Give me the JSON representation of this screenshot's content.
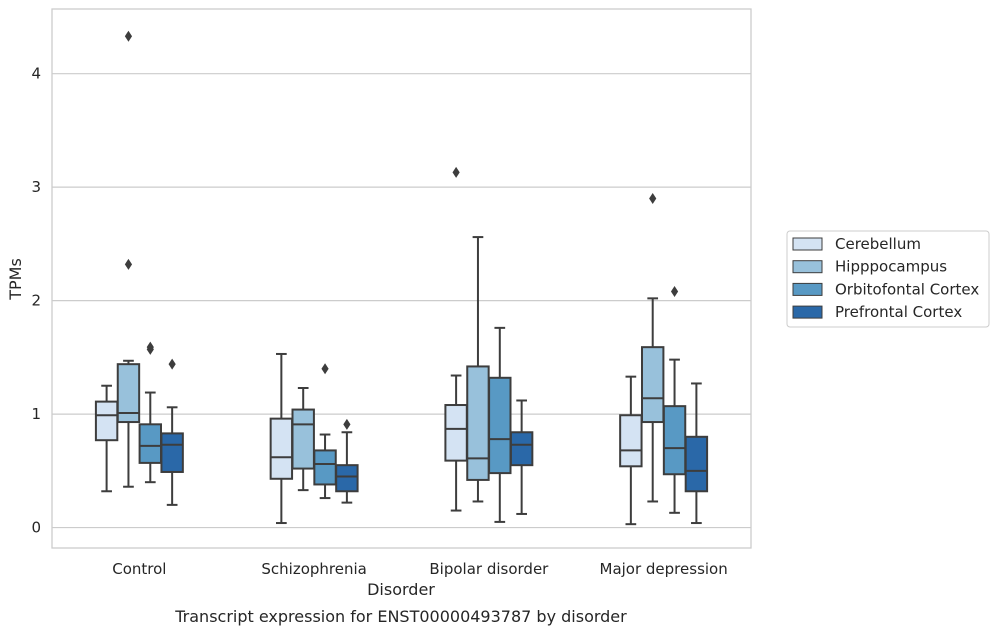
{
  "chart_data": {
    "type": "box",
    "xlabel": "Disorder",
    "ylabel": "TPMs",
    "caption": "Transcript expression for ENST00000493787 by disorder",
    "categories": [
      "Control",
      "Schizophrenia",
      "Bipolar disorder",
      "Major depression"
    ],
    "ylim": [
      -0.18,
      4.57
    ],
    "yticks": [
      0,
      1,
      2,
      3,
      4
    ],
    "grid": "horizontal",
    "legend_position": "right",
    "series": [
      {
        "name": "Cerebellum",
        "color": "#d4e3f3",
        "boxes": [
          {
            "whisker_low": 0.32,
            "q1": 0.77,
            "median": 0.99,
            "q3": 1.11,
            "whisker_high": 1.25,
            "outliers": []
          },
          {
            "whisker_low": 0.04,
            "q1": 0.43,
            "median": 0.62,
            "q3": 0.96,
            "whisker_high": 1.53,
            "outliers": []
          },
          {
            "whisker_low": 0.15,
            "q1": 0.59,
            "median": 0.87,
            "q3": 1.08,
            "whisker_high": 1.34,
            "outliers": [
              3.13
            ]
          },
          {
            "whisker_low": 0.03,
            "q1": 0.54,
            "median": 0.68,
            "q3": 0.99,
            "whisker_high": 1.33,
            "outliers": []
          }
        ]
      },
      {
        "name": "Hipppocampus",
        "color": "#98c1db",
        "boxes": [
          {
            "whisker_low": 0.36,
            "q1": 0.93,
            "median": 1.01,
            "q3": 1.44,
            "whisker_high": 1.47,
            "outliers": [
              2.32,
              4.33
            ]
          },
          {
            "whisker_low": 0.33,
            "q1": 0.52,
            "median": 0.91,
            "q3": 1.04,
            "whisker_high": 1.23,
            "outliers": []
          },
          {
            "whisker_low": 0.23,
            "q1": 0.42,
            "median": 0.61,
            "q3": 1.42,
            "whisker_high": 2.56,
            "outliers": []
          },
          {
            "whisker_low": 0.23,
            "q1": 0.93,
            "median": 1.14,
            "q3": 1.59,
            "whisker_high": 2.02,
            "outliers": [
              2.9
            ]
          }
        ]
      },
      {
        "name": "Orbitofontal Cortex",
        "color": "#5899c4",
        "boxes": [
          {
            "whisker_low": 0.4,
            "q1": 0.57,
            "median": 0.72,
            "q3": 0.91,
            "whisker_high": 1.19,
            "outliers": [
              1.57,
              1.59
            ]
          },
          {
            "whisker_low": 0.26,
            "q1": 0.38,
            "median": 0.56,
            "q3": 0.68,
            "whisker_high": 0.82,
            "outliers": [
              1.4
            ]
          },
          {
            "whisker_low": 0.05,
            "q1": 0.48,
            "median": 0.78,
            "q3": 1.32,
            "whisker_high": 1.76,
            "outliers": []
          },
          {
            "whisker_low": 0.13,
            "q1": 0.47,
            "median": 0.7,
            "q3": 1.07,
            "whisker_high": 1.48,
            "outliers": [
              2.08
            ]
          }
        ]
      },
      {
        "name": "Prefrontal Cortex",
        "color": "#2a68a8",
        "boxes": [
          {
            "whisker_low": 0.2,
            "q1": 0.49,
            "median": 0.73,
            "q3": 0.83,
            "whisker_high": 1.06,
            "outliers": [
              1.44
            ]
          },
          {
            "whisker_low": 0.22,
            "q1": 0.32,
            "median": 0.45,
            "q3": 0.55,
            "whisker_high": 0.84,
            "outliers": [
              0.91
            ]
          },
          {
            "whisker_low": 0.12,
            "q1": 0.55,
            "median": 0.73,
            "q3": 0.84,
            "whisker_high": 1.12,
            "outliers": []
          },
          {
            "whisker_low": 0.04,
            "q1": 0.32,
            "median": 0.5,
            "q3": 0.8,
            "whisker_high": 1.27,
            "outliers": []
          }
        ]
      }
    ]
  },
  "colors": {
    "box_edge": "#3d3d3d",
    "grid": "#cccccc",
    "frame": "#cccccc",
    "text": "#262626"
  }
}
